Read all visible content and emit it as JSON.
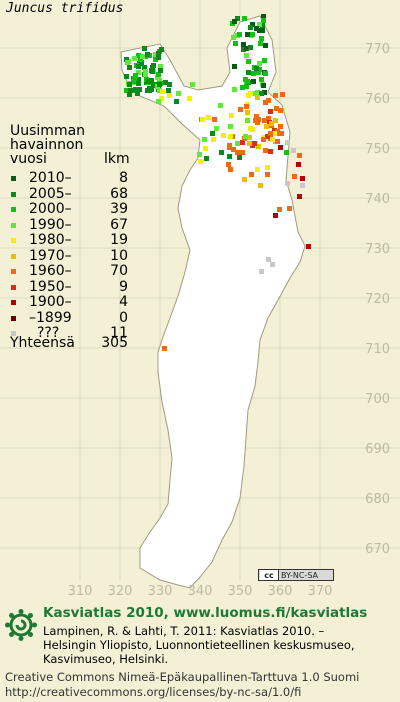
{
  "species": "Juncus trifidus",
  "legend": {
    "heading": [
      "Uusimman",
      "havainnon",
      "vuosi"
    ],
    "count_header": "lkm",
    "rows": [
      {
        "label": "2010–",
        "count": "8",
        "color": "#0a5a1a"
      },
      {
        "label": "2005–",
        "count": "68",
        "color": "#0a8a1a"
      },
      {
        "label": "2000–",
        "count": "39",
        "color": "#15c015"
      },
      {
        "label": "1990–",
        "count": "67",
        "color": "#60e840"
      },
      {
        "label": "1980–",
        "count": "19",
        "color": "#f2f200"
      },
      {
        "label": "1970–",
        "count": "10",
        "color": "#e8c000"
      },
      {
        "label": "1960–",
        "count": "70",
        "color": "#f06a12"
      },
      {
        "label": "1950–",
        "count": "9",
        "color": "#dd2c10"
      },
      {
        "label": "1900–",
        "count": "4",
        "color": "#b40000"
      },
      {
        "label": "–1899",
        "count": "0",
        "color": "#6a0000"
      },
      {
        "label": "???",
        "count": "11",
        "color": "#c8c8c8"
      }
    ],
    "total_label": "Yhteensä",
    "total": "305"
  },
  "axes": {
    "y_ticks": [
      "770",
      "760",
      "750",
      "740",
      "730",
      "720",
      "710",
      "700",
      "690",
      "680",
      "670"
    ],
    "x_ticks": [
      "310",
      "320",
      "330",
      "340",
      "350",
      "360",
      "370"
    ]
  },
  "cc_badge": {
    "icon": "cc",
    "text": "BY-NC-SA"
  },
  "footer": {
    "title": "Kasviatlas 2010, www.luomus.fi/kasviatlas",
    "citation": [
      "Lampinen, R. & Lahti, T. 2011: Kasviatlas 2010. –",
      "Helsingin Yliopisto, Luonnontieteellinen keskusmuseo,",
      "Kasvimuseo, Helsinki."
    ],
    "license": [
      "Creative Commons Nimeä-Epäkaupallinen-Tarttuva 1.0 Suomi",
      "http://creativecommons.org/licenses/by-nc-sa/1.0/fi"
    ]
  },
  "colors": {
    "background": "#f3f0d6",
    "land": "#ffffff",
    "grid": "#c9c6b0",
    "axis_text": "#bdbaa0",
    "brand_green": "#1d7a34"
  }
}
